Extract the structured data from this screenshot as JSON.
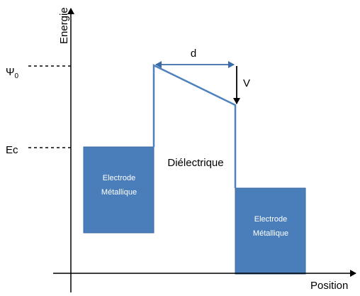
{
  "axes": {
    "y_label": "Energie",
    "x_label": "Position"
  },
  "levels": {
    "psi": "Ψ",
    "psi_subscript": "0",
    "ec": "Ec"
  },
  "annotations": {
    "distance": "d",
    "voltage": "V",
    "dielectric": "Diélectrique"
  },
  "electrodes": [
    {
      "line1": "Electrode",
      "line2": "Métallique"
    },
    {
      "line1": "Electrode",
      "line2": "Métallique"
    }
  ]
}
